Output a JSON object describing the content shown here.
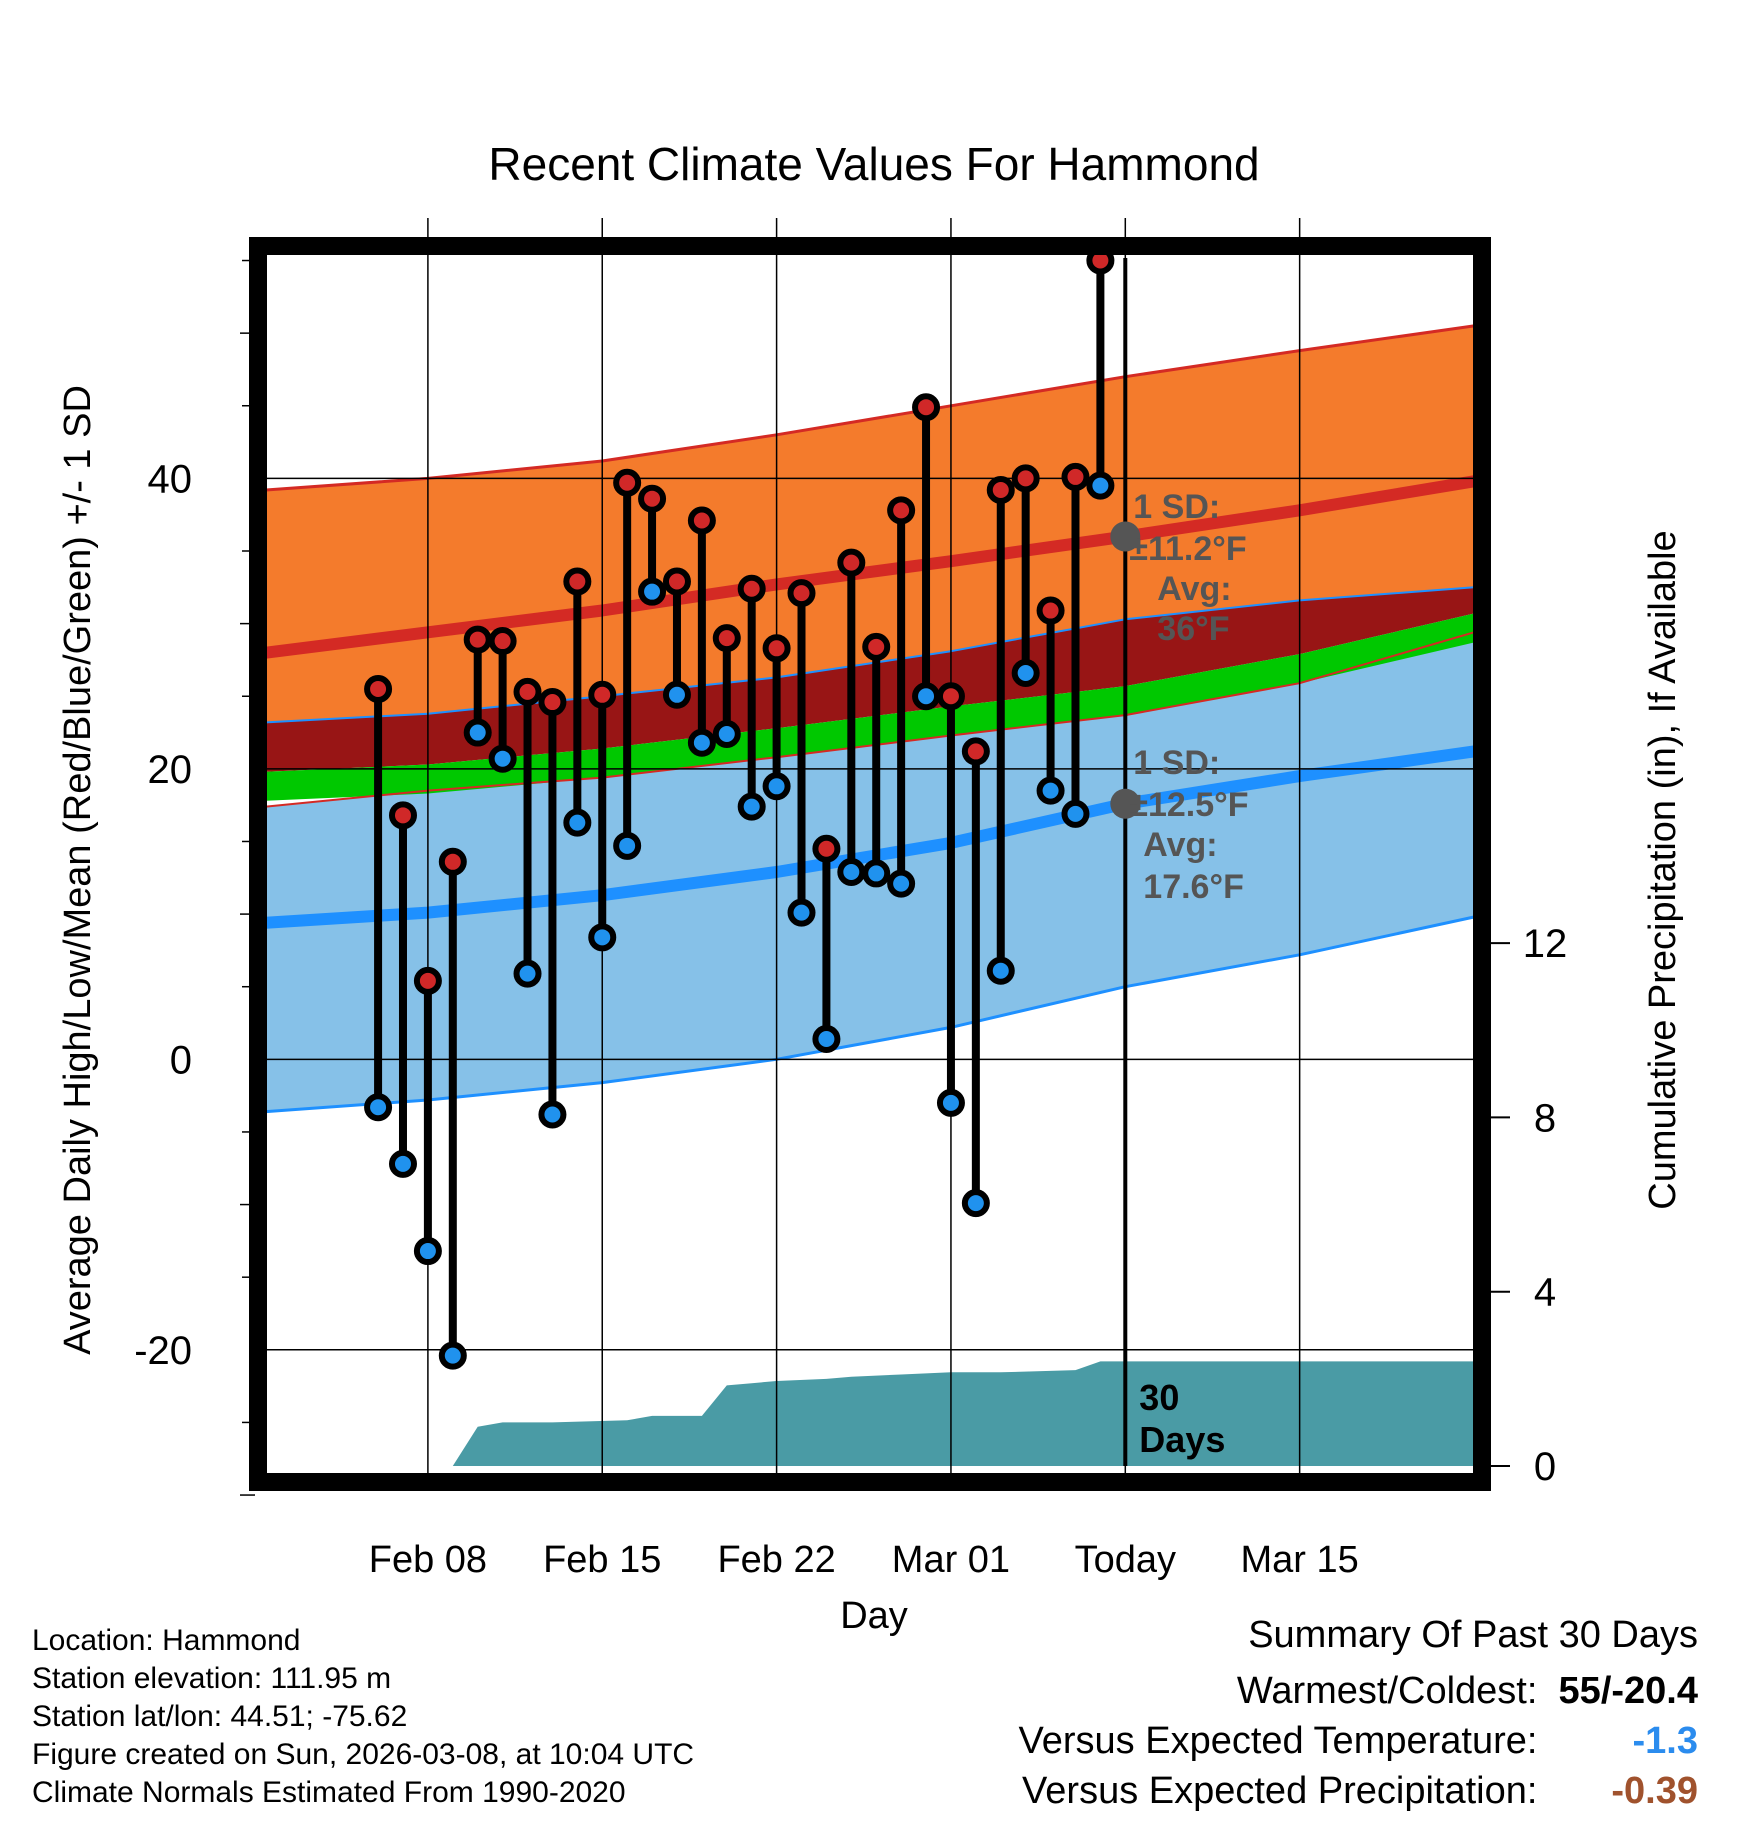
{
  "chart_data": {
    "type": "line",
    "title": "Recent Climate Values For Hammond",
    "xlabel": "Day",
    "ylabel": "Average Daily High/Low/Mean (Red/Blue/Green) +/- 1 SD",
    "y2label": "Cumulative Precipitation (in), If Available",
    "x_range_days": [
      -34.5,
      14
    ],
    "ylim": [
      -28,
      56
    ],
    "y2lim": [
      0,
      28
    ],
    "y_ticks": [
      -20,
      0,
      20,
      40
    ],
    "y2_ticks": [
      0,
      4,
      8,
      12
    ],
    "x_ticks": [
      {
        "day": -28,
        "label": "Feb 08"
      },
      {
        "day": -21,
        "label": "Feb 15"
      },
      {
        "day": -14,
        "label": "Feb 22"
      },
      {
        "day": -7,
        "label": "Mar 01"
      },
      {
        "day": 0,
        "label": "Today"
      },
      {
        "day": 7,
        "label": "Mar 15"
      }
    ],
    "grid": true,
    "today_day": 0,
    "daily": [
      {
        "day": -30,
        "high": 25.5,
        "low": -3.3
      },
      {
        "day": -29,
        "high": 16.8,
        "low": -7.2
      },
      {
        "day": -28,
        "high": 5.4,
        "low": -13.2
      },
      {
        "day": -27,
        "high": 13.6,
        "low": -20.4
      },
      {
        "day": -26,
        "high": 28.9,
        "low": 22.5
      },
      {
        "day": -25,
        "high": 28.8,
        "low": 20.7
      },
      {
        "day": -24,
        "high": 25.3,
        "low": 5.9
      },
      {
        "day": -23,
        "high": 24.6,
        "low": -3.8
      },
      {
        "day": -22,
        "high": 32.9,
        "low": 16.3
      },
      {
        "day": -21,
        "high": 25.1,
        "low": 8.4
      },
      {
        "day": -20,
        "high": 39.7,
        "low": 14.7
      },
      {
        "day": -19,
        "high": 38.6,
        "low": 32.2
      },
      {
        "day": -18,
        "high": 32.9,
        "low": 25.1
      },
      {
        "day": -17,
        "high": 37.1,
        "low": 21.8
      },
      {
        "day": -16,
        "high": 29.0,
        "low": 22.4
      },
      {
        "day": -15,
        "high": 32.4,
        "low": 17.4
      },
      {
        "day": -14,
        "high": 28.3,
        "low": 18.8
      },
      {
        "day": -13,
        "high": 32.1,
        "low": 10.1
      },
      {
        "day": -12,
        "high": 14.5,
        "low": 1.4
      },
      {
        "day": -11,
        "high": 34.2,
        "low": 12.9
      },
      {
        "day": -10,
        "high": 28.4,
        "low": 12.8
      },
      {
        "day": -9,
        "high": 37.8,
        "low": 12.1
      },
      {
        "day": -8,
        "high": 44.9,
        "low": 25.0
      },
      {
        "day": -7,
        "high": 25.0,
        "low": -3.0
      },
      {
        "day": -6,
        "high": 21.2,
        "low": -9.9
      },
      {
        "day": -5,
        "high": 39.2,
        "low": 6.1
      },
      {
        "day": -4,
        "high": 40.0,
        "low": 26.6
      },
      {
        "day": -3,
        "high": 30.9,
        "low": 18.5
      },
      {
        "day": -2,
        "high": 40.1,
        "low": 16.9
      },
      {
        "day": -1,
        "high": 55.0,
        "low": 39.5
      }
    ],
    "normals": {
      "days": [
        -34.5,
        -28,
        -21,
        -14,
        -7,
        0,
        7,
        14
      ],
      "high_avg": [
        28.0,
        29.4,
        30.9,
        32.7,
        34.3,
        36.0,
        37.8,
        39.8
      ],
      "high_upper": [
        39.2,
        40.0,
        41.2,
        43.0,
        45.0,
        47.0,
        48.8,
        50.5
      ],
      "high_lower": [
        23.2,
        23.8,
        25.0,
        26.3,
        28.1,
        30.3,
        31.6,
        32.5
      ],
      "mean_upper": [
        19.8,
        20.3,
        21.4,
        22.8,
        24.3,
        25.7,
        27.9,
        30.7
      ],
      "mean_lower": [
        17.8,
        18.3,
        19.4,
        20.8,
        22.3,
        23.7,
        25.9,
        28.7
      ],
      "low_upper": [
        17.4,
        18.5,
        19.4,
        20.8,
        22.3,
        23.7,
        25.9,
        29.4
      ],
      "low_avg": [
        9.4,
        10.1,
        11.3,
        12.9,
        14.9,
        17.6,
        19.5,
        21.2
      ],
      "low_lower": [
        -3.6,
        -2.8,
        -1.6,
        0.0,
        2.2,
        5.0,
        7.2,
        9.8
      ]
    },
    "precip": {
      "days": [
        -31.5,
        -27,
        -26,
        -25,
        -23,
        -20,
        -19,
        -17,
        -16,
        -15,
        -14,
        -12,
        -11,
        -9,
        -7,
        -5,
        -2,
        -1,
        14
      ],
      "values": [
        0.0,
        0.0,
        0.9,
        1.0,
        1.0,
        1.05,
        1.15,
        1.15,
        1.85,
        1.9,
        1.95,
        2.0,
        2.05,
        2.1,
        2.15,
        2.15,
        2.2,
        2.4,
        2.4
      ]
    },
    "annotations": [
      {
        "lines": [
          "1 SD:",
          "±11.2°F",
          "Avg:",
          "36°F"
        ],
        "marker_value": 36.0
      },
      {
        "lines": [
          "1 SD:",
          "±12.5°F",
          "Avg:",
          "17.6°F"
        ],
        "marker_value": 17.6
      },
      {
        "lines": [
          "30",
          "Days"
        ]
      }
    ]
  },
  "footer": {
    "location": "Location: Hammond",
    "elevation": "Station elevation: 111.95 m",
    "latlon": "Station lat/lon: 44.51; -75.62",
    "created": "Figure created on Sun, 2026-03-08, at 10:04 UTC",
    "normals": "Climate Normals Estimated From 1990-2020"
  },
  "summary": {
    "title": "Summary Of Past 30 Days",
    "rows": [
      {
        "label": "Warmest/Coldest:",
        "value": "55/-20.4",
        "color": "#000000"
      },
      {
        "label": "Versus Expected Temperature:",
        "value": "-1.3",
        "color": "#2b8cee"
      },
      {
        "label": "Versus Expected Precipitation:",
        "value": "-0.39",
        "color": "#a0522d"
      }
    ]
  },
  "colors": {
    "high_band": "#f47b2c",
    "high_line": "#d42a24",
    "dark_band": "#981515",
    "mean_band": "#00c800",
    "low_band": "#86c1e8",
    "low_line": "#1e90ff",
    "precip": "#4a9ba5",
    "high_dot": "#d02828",
    "low_dot": "#2092ee",
    "annot": "#555555"
  }
}
